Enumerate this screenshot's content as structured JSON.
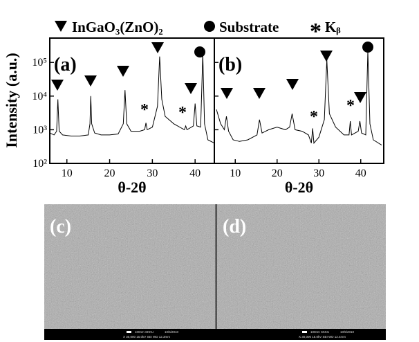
{
  "legend": [
    "InGaO₃(ZnO)₂",
    "Substrate",
    "Kᵦ"
  ],
  "ylabel": "Intensity (a.u.)",
  "chart_data": [
    {
      "type": "line",
      "panel_label": "(a)",
      "xlabel": "θ-2θ",
      "log_y": true,
      "xlim": [
        6,
        44.5
      ],
      "xticks": [
        10,
        20,
        30,
        40
      ],
      "ylim": [
        100,
        530000
      ],
      "yticks": [
        {
          "value": 100,
          "label": "10²"
        },
        {
          "value": 1000,
          "label": "10³"
        },
        {
          "value": 10000,
          "label": "10⁴"
        },
        {
          "value": 100000,
          "label": "10⁵"
        }
      ],
      "x": [
        6,
        7,
        7.6,
        7.9,
        8.2,
        9,
        11,
        13,
        15,
        15.4,
        15.6,
        15.8,
        16.5,
        18,
        20,
        22,
        23.2,
        23.6,
        24,
        25,
        27,
        28.2,
        28.5,
        28.8,
        30,
        31.2,
        31.7,
        32.2,
        33,
        35,
        37.5,
        37.8,
        38.1,
        39.6,
        40,
        40.4,
        41.3,
        41.8,
        42.2,
        43,
        44.5
      ],
      "series": [
        {
          "color": "#000000",
          "values": [
            800,
            700,
            900,
            8000,
            900,
            700,
            650,
            650,
            700,
            1500,
            10000,
            1500,
            800,
            700,
            700,
            750,
            1500,
            15000,
            1500,
            900,
            900,
            1000,
            1600,
            1000,
            1200,
            5000,
            150000,
            8000,
            2500,
            1500,
            1000,
            1300,
            1000,
            1300,
            6000,
            1300,
            1200,
            180000,
            1500,
            500,
            400
          ]
        }
      ]
    },
    {
      "type": "line",
      "panel_label": "(b)",
      "xlabel": "θ-2θ",
      "log_y": true,
      "xlim": [
        5,
        45.5
      ],
      "xticks": [
        10,
        20,
        30,
        40
      ],
      "ylim": [
        100,
        530000
      ],
      "yticks": [
        100,
        1000,
        10000,
        100000
      ],
      "x": [
        5.5,
        6.5,
        7.4,
        7.9,
        8.4,
        9.5,
        11,
        13,
        15.2,
        15.8,
        16.4,
        18,
        20,
        22,
        23,
        23.6,
        24.3,
        26,
        27.5,
        28.2,
        28.5,
        28.8,
        30,
        31.3,
        31.9,
        32.5,
        34,
        36,
        37.2,
        37.5,
        37.8,
        39.4,
        39.8,
        40.2,
        41.2,
        41.7,
        42.2,
        43,
        45
      ],
      "series": [
        {
          "color": "#000000",
          "values": [
            4000,
            1500,
            1000,
            2500,
            900,
            500,
            450,
            500,
            700,
            2000,
            800,
            1000,
            1200,
            1000,
            1200,
            3000,
            1000,
            900,
            700,
            400,
            1100,
            400,
            600,
            2000,
            120000,
            3000,
            1200,
            700,
            700,
            1800,
            700,
            900,
            1800,
            800,
            700,
            220000,
            1500,
            500,
            350
          ]
        }
      ]
    }
  ],
  "sem": [
    {
      "label": "(c)",
      "scale": "100nm SKKU",
      "date": "10/5/2010",
      "info": "X 30,000  15.0kV SEI  WD 12.3mm"
    },
    {
      "label": "(d)",
      "scale": "100nm SKKU",
      "date": "10/5/2010",
      "info": "X 30,000  15.0kV SEI  WD 12.4mm"
    }
  ]
}
